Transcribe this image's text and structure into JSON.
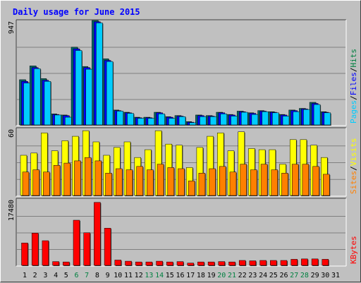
{
  "chart_data": {
    "type": "bar",
    "title": "Daily usage for June 2015",
    "categories": [
      "1",
      "2",
      "3",
      "4",
      "5",
      "6",
      "7",
      "8",
      "9",
      "10",
      "11",
      "12",
      "13",
      "14",
      "15",
      "16",
      "17",
      "18",
      "19",
      "20",
      "21",
      "22",
      "23",
      "24",
      "25",
      "26",
      "27",
      "28",
      "29",
      "30",
      "31"
    ],
    "weekend_days": [
      "6",
      "7",
      "13",
      "14",
      "20",
      "21",
      "27",
      "28"
    ],
    "panels": [
      {
        "id": "hits-files-pages",
        "max_label": "947",
        "ylim": [
          0,
          947
        ],
        "legend": [
          "Pages",
          "/",
          "Files",
          "/",
          "Hits"
        ],
        "series": [
          {
            "name": "Hits",
            "color": "#006666",
            "values": [
              410,
              535,
              420,
              100,
              90,
              705,
              530,
              947,
              600,
              135,
              115,
              70,
              70,
              115,
              75,
              85,
              30,
              90,
              85,
              115,
              95,
              125,
              110,
              130,
              120,
              95,
              135,
              150,
              205,
              120,
              0
            ]
          },
          {
            "name": "Files",
            "color": "#0000ff",
            "values": [
              395,
              520,
              405,
              95,
              85,
              690,
              520,
              935,
              585,
              130,
              110,
              65,
              65,
              110,
              70,
              80,
              25,
              85,
              80,
              110,
              90,
              120,
              105,
              125,
              115,
              90,
              130,
              145,
              195,
              115,
              0
            ]
          },
          {
            "name": "Pages",
            "color": "#00ccff",
            "values": [
              380,
              510,
              395,
              90,
              70,
              675,
              505,
              925,
              575,
              125,
              105,
              60,
              60,
              100,
              60,
              75,
              20,
              75,
              75,
              100,
              80,
              115,
              95,
              120,
              110,
              80,
              120,
              140,
              185,
              110,
              0
            ]
          }
        ]
      },
      {
        "id": "visits-sites",
        "max_label": "60",
        "ylim": [
          0,
          60
        ],
        "legend": [
          "Sites",
          "/",
          "Visits"
        ],
        "series": [
          {
            "name": "Visits",
            "color": "#ffff00",
            "values": [
              36,
              38,
              56,
              40,
              49,
              53,
              58,
              48,
              36,
              43,
              48,
              34,
              41,
              58,
              46,
              45,
              25,
              43,
              53,
              56,
              40,
              57,
              42,
              41,
              41,
              28,
              50,
              50,
              45,
              34,
              0
            ]
          },
          {
            "name": "Sites",
            "color": "#ff8000",
            "values": [
              21,
              23,
              21,
              27,
              29,
              31,
              34,
              31,
              20,
              24,
              23,
              26,
              23,
              28,
              25,
              24,
              13,
              20,
              24,
              26,
              21,
              28,
              23,
              28,
              23,
              20,
              28,
              28,
              26,
              19,
              0
            ]
          }
        ]
      },
      {
        "id": "kbytes",
        "max_label": "17480",
        "ylim": [
          0,
          17480
        ],
        "legend": [
          "KBytes"
        ],
        "series": [
          {
            "name": "KBytes",
            "color": "#ff0000",
            "values": [
              5900,
              8500,
              6500,
              1000,
              900,
              11900,
              8600,
              16600,
              9800,
              1400,
              1100,
              900,
              900,
              1100,
              900,
              1000,
              600,
              900,
              900,
              1000,
              900,
              1300,
              1200,
              1300,
              1300,
              1300,
              1600,
              1700,
              1700,
              1600,
              0
            ]
          }
        ]
      }
    ],
    "colors": {
      "title": "#0000ff",
      "weekday_label": "#000000",
      "weekend_label": "#008040",
      "plot_bg": "#c0c0c0",
      "gridline": "#808080",
      "bar_shadow": "#404040"
    }
  }
}
